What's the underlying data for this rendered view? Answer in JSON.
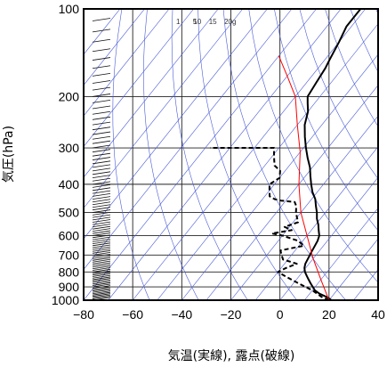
{
  "chart_data": {
    "type": "line",
    "xlabel": "気温(実線), 露点(破線)",
    "ylabel": "気圧(hPa)",
    "xlim": [
      -80,
      40
    ],
    "ylim": [
      1000,
      100
    ],
    "y_scale": "log",
    "grid": true,
    "x_ticks": [
      -80,
      -60,
      -40,
      -20,
      0,
      20,
      40
    ],
    "x_tick_labels": [
      "−80",
      "−60",
      "−40",
      "−20",
      "0",
      "20",
      "40"
    ],
    "y_ticks": [
      100,
      200,
      300,
      400,
      500,
      600,
      700,
      800,
      900,
      1000
    ],
    "y_tick_labels": [
      "100",
      "200",
      "300",
      "400",
      "500",
      "600",
      "700",
      "800",
      "900",
      "1000"
    ],
    "mixing_ratio_labels": [
      {
        "text": "1",
        "value": 1
      },
      {
        "text": "5",
        "value": 5
      },
      {
        "text": "10",
        "value": 10
      },
      {
        "text": "15",
        "value": 15
      },
      {
        "text": "20g",
        "value": 20
      }
    ],
    "series": [
      {
        "style": "solid",
        "color": "#000000",
        "points": [
          [
            21,
            1000
          ],
          [
            18,
            975
          ],
          [
            14,
            950
          ],
          [
            11,
            925
          ],
          [
            9,
            900
          ],
          [
            7,
            875
          ],
          [
            5,
            850
          ],
          [
            3,
            825
          ],
          [
            1,
            800
          ],
          [
            -0.5,
            775
          ],
          [
            -1.5,
            750
          ],
          [
            -2,
            725
          ],
          [
            -2.5,
            700
          ],
          [
            -3,
            675
          ],
          [
            -3.5,
            650
          ],
          [
            -4,
            625
          ],
          [
            -5,
            600
          ],
          [
            -7,
            575
          ],
          [
            -9,
            550
          ],
          [
            -11.5,
            525
          ],
          [
            -13.5,
            500
          ],
          [
            -16,
            475
          ],
          [
            -18.5,
            450
          ],
          [
            -22,
            425
          ],
          [
            -25,
            400
          ],
          [
            -28,
            375
          ],
          [
            -31,
            350
          ],
          [
            -35,
            325
          ],
          [
            -39,
            300
          ],
          [
            -43,
            275
          ],
          [
            -47,
            250
          ],
          [
            -50,
            225
          ],
          [
            -53,
            210
          ],
          [
            -55,
            200
          ],
          [
            -56,
            180
          ],
          [
            -57,
            160
          ],
          [
            -58,
            150
          ],
          [
            -60,
            130
          ],
          [
            -62,
            115
          ],
          [
            -62,
            100
          ]
        ]
      },
      {
        "style": "dashed",
        "color": "#000000",
        "points": [
          [
            20,
            1000
          ],
          [
            16,
            975
          ],
          [
            13,
            950
          ],
          [
            10,
            925
          ],
          [
            6,
            900
          ],
          [
            2,
            875
          ],
          [
            -2,
            850
          ],
          [
            -6,
            825
          ],
          [
            -10,
            800
          ],
          [
            -8,
            775
          ],
          [
            -5,
            750
          ],
          [
            -12,
            725
          ],
          [
            -14,
            700
          ],
          [
            -16,
            675
          ],
          [
            -8,
            650
          ],
          [
            -12,
            625
          ],
          [
            -20,
            600
          ],
          [
            -25,
            590
          ],
          [
            -18,
            575
          ],
          [
            -22,
            560
          ],
          [
            -18,
            540
          ],
          [
            -20,
            520
          ],
          [
            -22,
            500
          ],
          [
            -24,
            475
          ],
          [
            -26,
            460
          ],
          [
            -32,
            455
          ],
          [
            -35,
            450
          ],
          [
            -38,
            440
          ],
          [
            -40,
            420
          ],
          [
            -42,
            400
          ],
          [
            -40,
            380
          ],
          [
            -42,
            360
          ],
          [
            -46,
            345
          ],
          [
            -48,
            330
          ],
          [
            -50,
            315
          ],
          [
            -52,
            300
          ],
          [
            -58,
            300
          ],
          [
            -65,
            300
          ],
          [
            -70,
            300
          ],
          [
            -78,
            300
          ]
        ]
      },
      {
        "style": "solid",
        "color": "#ff0000",
        "points": [
          [
            20,
            1000
          ],
          [
            10,
            850
          ],
          [
            0,
            720
          ],
          [
            -10,
            600
          ],
          [
            -20,
            500
          ],
          [
            -30,
            400
          ],
          [
            -40,
            310
          ],
          [
            -50,
            250
          ],
          [
            -60,
            200
          ],
          [
            -70,
            170
          ],
          [
            -80,
            145
          ]
        ]
      }
    ]
  }
}
